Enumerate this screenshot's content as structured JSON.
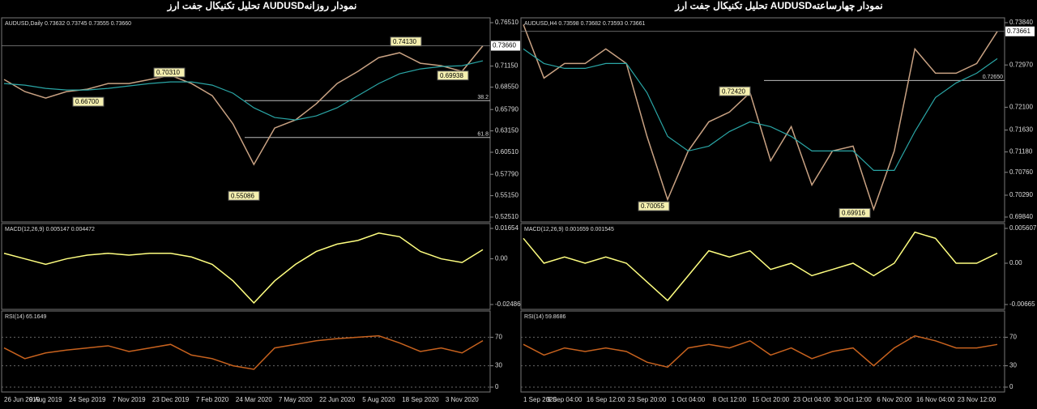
{
  "chart_data": [
    {
      "type": "line",
      "title": "تحلیل تکنیکال جفت ارز  AUDUSDنمودار روزانه",
      "subtitle": "AUDUSD,Daily  0.73632 0.73745 0.73555 0.73660",
      "series": [
        {
          "color": "#c9a283",
          "values": [
            0.695,
            0.68,
            0.672,
            0.68,
            0.683,
            0.69,
            0.69,
            0.695,
            0.7,
            0.69,
            0.675,
            0.64,
            0.59,
            0.635,
            0.645,
            0.665,
            0.69,
            0.705,
            0.722,
            0.728,
            0.715,
            0.712,
            0.705,
            0.7366
          ]
        },
        {
          "color": "#2aa6a6",
          "values": [
            0.69,
            0.688,
            0.684,
            0.682,
            0.682,
            0.684,
            0.687,
            0.69,
            0.692,
            0.692,
            0.688,
            0.678,
            0.66,
            0.648,
            0.645,
            0.65,
            0.66,
            0.675,
            0.69,
            0.702,
            0.708,
            0.711,
            0.712,
            0.718
          ]
        }
      ],
      "ylim": [
        0.5251,
        0.7651
      ],
      "yticks": [
        {
          "value": 0.7651,
          "label": "0.76510"
        },
        {
          "value": 0.7115,
          "label": "0.71150"
        },
        {
          "value": 0.6855,
          "label": "0.68550"
        },
        {
          "value": 0.6579,
          "label": "0.65790"
        },
        {
          "value": 0.6315,
          "label": "0.63150"
        },
        {
          "value": 0.6051,
          "label": "0.60510"
        },
        {
          "value": 0.5779,
          "label": "0.57790"
        },
        {
          "value": 0.5515,
          "label": "0.55150"
        },
        {
          "value": 0.5251,
          "label": "0.52510"
        }
      ],
      "current_price": {
        "value": 0.7366,
        "label": "0.73660"
      },
      "levels": [
        {
          "value": 0.6689,
          "label": "38.2"
        },
        {
          "value": 0.6233,
          "label": "61.8"
        }
      ],
      "annotations": [
        {
          "value": 0.7413,
          "label": "0.74130"
        },
        {
          "value": 0.7031,
          "label": "0.70310"
        },
        {
          "value": 0.667,
          "label": "0.66700"
        },
        {
          "value": 0.55086,
          "label": "0.55086"
        },
        {
          "value": 0.69938,
          "label": "0.69938"
        }
      ]
    },
    {
      "type": "line",
      "subtitle": "MACD(12,26,9) 0.005147 0.004472",
      "series": [
        {
          "color": "#ffff80",
          "values": [
            0.003,
            0,
            -0.003,
            0,
            0.002,
            0.003,
            0.002,
            0.003,
            0.003,
            0.001,
            -0.003,
            -0.012,
            -0.024,
            -0.012,
            -0.003,
            0.004,
            0.008,
            0.01,
            0.014,
            0.012,
            0.004,
            0,
            -0.002,
            0.005
          ]
        }
      ],
      "ylim": [
        -0.02486,
        0.01654
      ],
      "yticks": [
        {
          "value": 0.01654,
          "label": "0.01654"
        },
        {
          "value": 0,
          "label": "0.00"
        },
        {
          "value": -0.02486,
          "label": "-0.02486"
        }
      ]
    },
    {
      "type": "line",
      "subtitle": "RSI(14) 65.1649",
      "categories": [
        "26 Jun 2019",
        null,
        "9 Aug 2019",
        null,
        "24 Sep 2019",
        null,
        "7 Nov 2019",
        null,
        "23 Dec 2019",
        null,
        "7 Feb 2020",
        null,
        "24 Mar 2020",
        null,
        "7 May 2020",
        null,
        "22 Jun 2020",
        null,
        "5 Aug 2020",
        null,
        "18 Sep 2020",
        null,
        "3 Nov 2020",
        null
      ],
      "series": [
        {
          "color": "#c8621e",
          "values": [
            55,
            40,
            48,
            52,
            55,
            58,
            50,
            55,
            60,
            45,
            40,
            30,
            25,
            55,
            60,
            65,
            68,
            70,
            72,
            62,
            50,
            55,
            48,
            65.16
          ]
        }
      ],
      "ylim": [
        0,
        100
      ],
      "yticks": [
        70,
        30,
        0
      ],
      "grid": true
    },
    {
      "type": "line",
      "title": "تحلیل تکنیکال جفت ارز  AUDUSDنمودار چهارساعته",
      "subtitle": "AUDUSD,H4  0.73598 0.73682 0.73593 0.73661",
      "series": [
        {
          "color": "#c9a283",
          "values": [
            0.738,
            0.727,
            0.73,
            0.73,
            0.733,
            0.73,
            0.715,
            0.702,
            0.712,
            0.718,
            0.72,
            0.724,
            0.71,
            0.717,
            0.705,
            0.712,
            0.713,
            0.7,
            0.712,
            0.733,
            0.728,
            0.728,
            0.73,
            0.7366
          ]
        },
        {
          "color": "#2aa6a6",
          "values": [
            0.733,
            0.73,
            0.729,
            0.729,
            0.73,
            0.73,
            0.724,
            0.715,
            0.712,
            0.713,
            0.716,
            0.718,
            0.717,
            0.715,
            0.712,
            0.712,
            0.712,
            0.708,
            0.708,
            0.716,
            0.723,
            0.726,
            0.728,
            0.731
          ]
        }
      ],
      "ylim": [
        0.6984,
        0.7384
      ],
      "yticks": [
        {
          "value": 0.7384,
          "label": "0.73840"
        },
        {
          "value": 0.7297,
          "label": "0.72970"
        },
        {
          "value": 0.721,
          "label": "0.72100"
        },
        {
          "value": 0.7163,
          "label": "0.71630"
        },
        {
          "value": 0.7118,
          "label": "0.71180"
        },
        {
          "value": 0.7076,
          "label": "0.70760"
        },
        {
          "value": 0.7029,
          "label": "0.70290"
        },
        {
          "value": 0.6984,
          "label": "0.69840"
        }
      ],
      "current_price": {
        "value": 0.73661,
        "label": "0.73661"
      },
      "levels": [
        {
          "value": 0.7265,
          "label": "0.72650"
        }
      ],
      "annotations": [
        {
          "value": 0.7242,
          "label": "0.72420"
        },
        {
          "value": 0.70055,
          "label": "0.70055"
        },
        {
          "value": 0.69916,
          "label": "0.69916"
        }
      ]
    },
    {
      "type": "line",
      "subtitle": "MACD(12,26,9) 0.001659 0.001545",
      "series": [
        {
          "color": "#ffff80",
          "values": [
            0.004,
            0,
            0.001,
            0,
            0.001,
            0,
            -0.003,
            -0.006,
            -0.002,
            0.002,
            0.001,
            0.002,
            -0.001,
            0,
            -0.002,
            -0.001,
            0,
            -0.002,
            0,
            0.005,
            0.004,
            0,
            0,
            0.0016
          ]
        }
      ],
      "ylim": [
        -0.00665,
        0.005607
      ],
      "yticks": [
        {
          "value": 0.005607,
          "label": "0.005607"
        },
        {
          "value": 0,
          "label": "0.00"
        },
        {
          "value": -0.00665,
          "label": "-0.00665"
        }
      ]
    },
    {
      "type": "line",
      "subtitle": "RSI(14) 59.8686",
      "categories": [
        "1 Sep 2020",
        null,
        "9 Sep 04:00",
        null,
        "16 Sep 12:00",
        null,
        "23 Sep 20:00",
        null,
        "1 Oct 04:00",
        null,
        "8 Oct 12:00",
        null,
        "15 Oct 20:00",
        null,
        "23 Oct 04:00",
        null,
        "30 Oct 12:00",
        null,
        "6 Nov 20:00",
        null,
        "16 Nov 04:00",
        null,
        "23 Nov 12:00",
        null
      ],
      "series": [
        {
          "color": "#c8621e",
          "values": [
            60,
            45,
            55,
            50,
            55,
            50,
            35,
            28,
            55,
            60,
            55,
            65,
            45,
            55,
            40,
            50,
            55,
            30,
            55,
            72,
            65,
            55,
            55,
            59.87
          ]
        }
      ],
      "ylim": [
        0,
        100
      ],
      "yticks": [
        70,
        30,
        0
      ],
      "grid": true
    }
  ]
}
